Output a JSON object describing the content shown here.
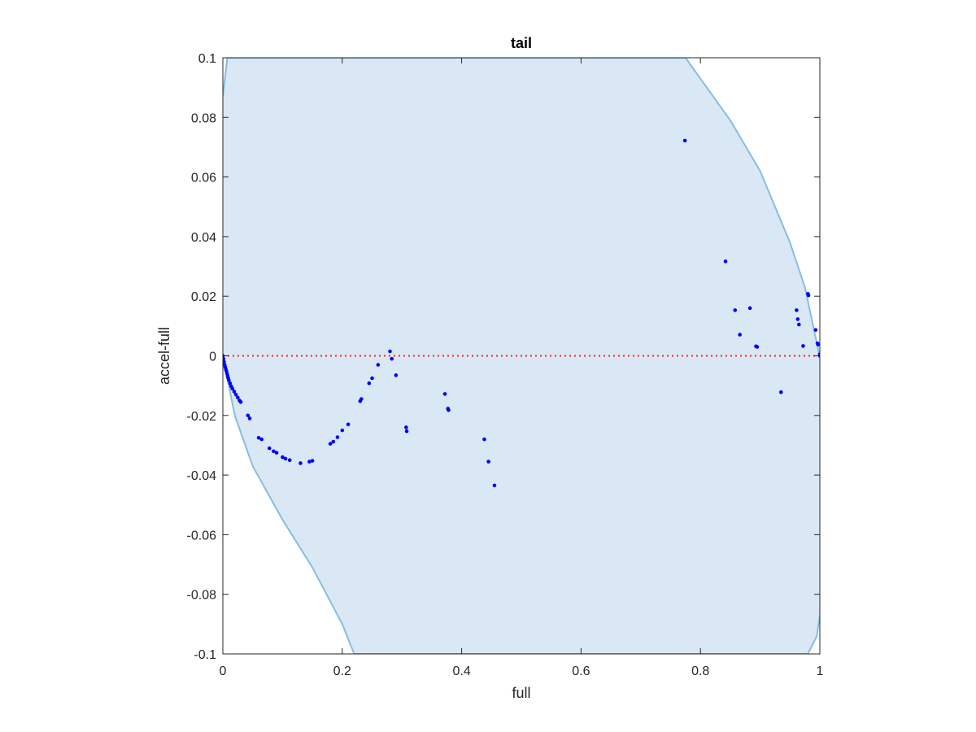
{
  "chart_data": {
    "type": "scatter",
    "title": "tail",
    "xlabel": "full",
    "ylabel": "accel-full",
    "xlim": [
      0,
      1
    ],
    "ylim": [
      -0.1,
      0.1
    ],
    "xticks": [
      "0",
      "0.2",
      "0.4",
      "0.6",
      "0.8",
      "1"
    ],
    "yticks": [
      "-0.1",
      "-0.08",
      "-0.06",
      "-0.04",
      "-0.02",
      "0",
      "0.02",
      "0.04",
      "0.06",
      "0.08",
      "0.1"
    ],
    "grid": false,
    "legend": "none",
    "band": {
      "upper": [
        [
          0,
          0.087
        ],
        [
          0.0075,
          0.1
        ],
        [
          0.02,
          0.1
        ],
        [
          0.775,
          0.1
        ],
        [
          0.8,
          0.093
        ],
        [
          0.85,
          0.079
        ],
        [
          0.9,
          0.062
        ],
        [
          0.95,
          0.038
        ],
        [
          0.975,
          0.023
        ],
        [
          1,
          -0.0005
        ]
      ],
      "lower": [
        [
          0,
          0
        ],
        [
          0.02,
          -0.02
        ],
        [
          0.05,
          -0.037
        ],
        [
          0.1,
          -0.055
        ],
        [
          0.15,
          -0.071
        ],
        [
          0.2,
          -0.09
        ],
        [
          0.22,
          -0.1
        ],
        [
          0.98,
          -0.1
        ],
        [
          0.995,
          -0.094
        ],
        [
          1,
          -0.087
        ]
      ],
      "fill_color": "#d9e8f4",
      "line_color": "#87bde2"
    },
    "reference_line": {
      "y": 0,
      "color": "#ff2020",
      "style": "dotted"
    },
    "series": [
      {
        "color": "#0000ff",
        "points": [
          [
            0,
            0
          ],
          [
            0.001,
            -0.001
          ],
          [
            0.002,
            -0.002
          ],
          [
            0.003,
            -0.003
          ],
          [
            0.004,
            -0.0038
          ],
          [
            0.005,
            -0.0045
          ],
          [
            0.006,
            -0.0052
          ],
          [
            0.007,
            -0.006
          ],
          [
            0.008,
            -0.0068
          ],
          [
            0.009,
            -0.0075
          ],
          [
            0.01,
            -0.0082
          ],
          [
            0.012,
            -0.0092
          ],
          [
            0.014,
            -0.0102
          ],
          [
            0.016,
            -0.011
          ],
          [
            0.019,
            -0.012
          ],
          [
            0.022,
            -0.013
          ],
          [
            0.025,
            -0.014
          ],
          [
            0.028,
            -0.015
          ],
          [
            0.03,
            -0.0155
          ],
          [
            0.042,
            -0.02
          ],
          [
            0.045,
            -0.021
          ],
          [
            0.06,
            -0.0275
          ],
          [
            0.065,
            -0.028
          ],
          [
            0.078,
            -0.031
          ],
          [
            0.085,
            -0.032
          ],
          [
            0.09,
            -0.0325
          ],
          [
            0.1,
            -0.034
          ],
          [
            0.105,
            -0.0345
          ],
          [
            0.112,
            -0.035
          ],
          [
            0.13,
            -0.036
          ],
          [
            0.145,
            -0.0355
          ],
          [
            0.15,
            -0.0352
          ],
          [
            0.18,
            -0.0295
          ],
          [
            0.185,
            -0.0288
          ],
          [
            0.192,
            -0.0273
          ],
          [
            0.2,
            -0.025
          ],
          [
            0.21,
            -0.023
          ],
          [
            0.23,
            -0.0152
          ],
          [
            0.232,
            -0.0145
          ],
          [
            0.245,
            -0.0092
          ],
          [
            0.25,
            -0.0075
          ],
          [
            0.26,
            -0.003
          ],
          [
            0.28,
            0.0015
          ],
          [
            0.283,
            -0.001
          ],
          [
            0.29,
            -0.0065
          ],
          [
            0.307,
            -0.024
          ],
          [
            0.308,
            -0.0253
          ],
          [
            0.372,
            -0.0128
          ],
          [
            0.377,
            -0.0177
          ],
          [
            0.378,
            -0.0182
          ],
          [
            0.438,
            -0.028
          ],
          [
            0.445,
            -0.0355
          ],
          [
            0.455,
            -0.0435
          ],
          [
            0.774,
            0.0722
          ],
          [
            0.842,
            0.0317
          ],
          [
            0.858,
            0.0153
          ],
          [
            0.866,
            0.0071
          ],
          [
            0.883,
            0.016
          ],
          [
            0.893,
            0.0032
          ],
          [
            0.895,
            0.003
          ],
          [
            0.935,
            -0.0122
          ],
          [
            0.961,
            0.0153
          ],
          [
            0.963,
            0.0123
          ],
          [
            0.965,
            0.0105
          ],
          [
            0.972,
            0.0033
          ],
          [
            0.98,
            0.0208
          ],
          [
            0.981,
            0.0203
          ],
          [
            0.993,
            0.0087
          ],
          [
            0.996,
            0.0042
          ],
          [
            0.997,
            0.0038
          ],
          [
            1,
            0.0005
          ],
          [
            1,
            0
          ]
        ]
      }
    ]
  }
}
